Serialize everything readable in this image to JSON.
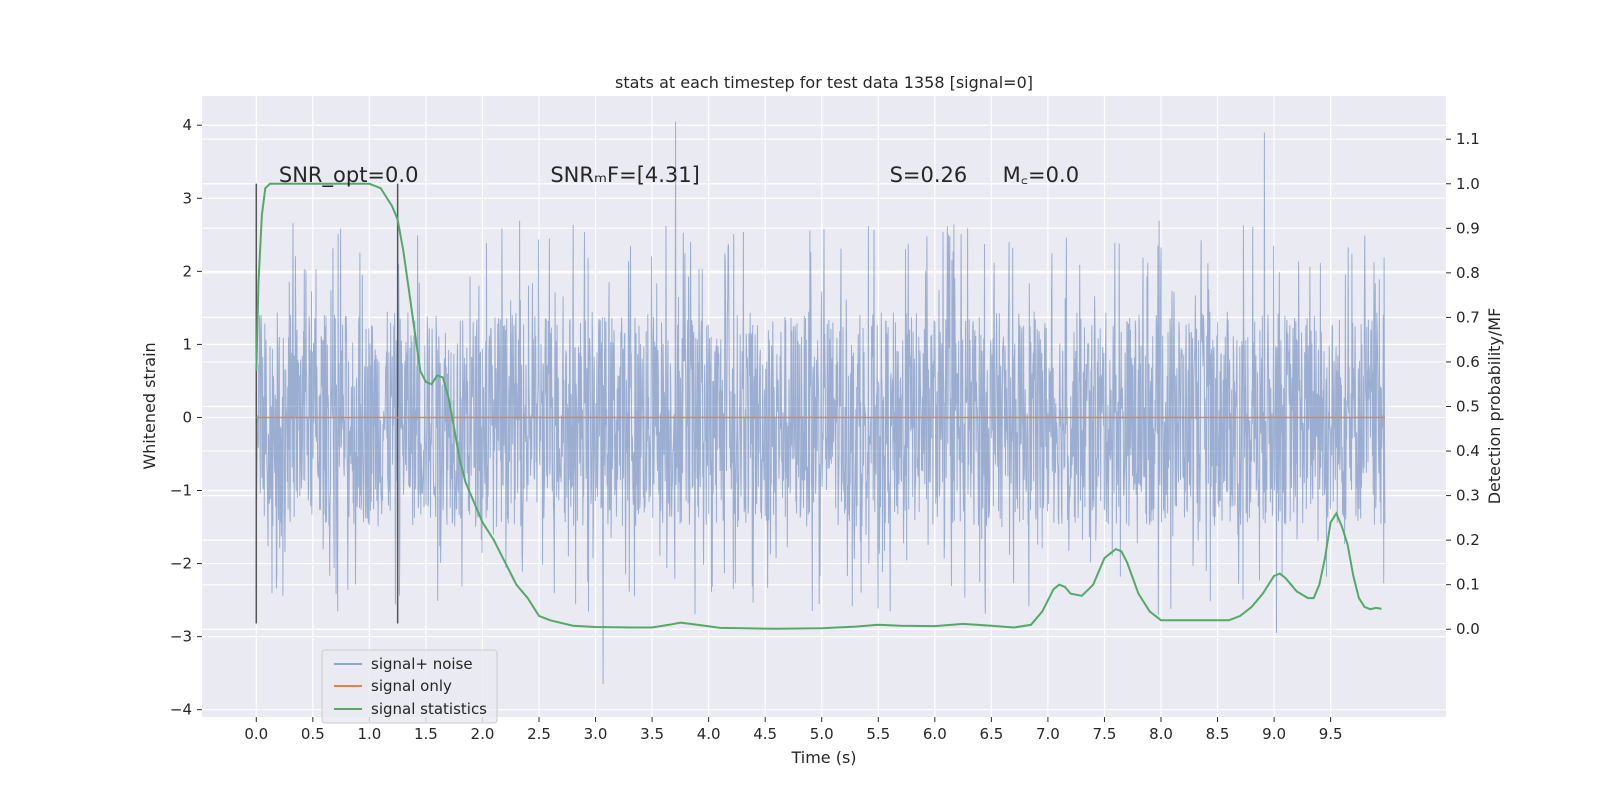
{
  "chart_data": {
    "type": "line",
    "title": "stats at each timestep for test data 1358 [signal=0]",
    "xlabel": "Time (s)",
    "ylabel": "Whitened strain",
    "y2label": "Detection probability/MF",
    "xlim": [
      -0.48,
      10.52
    ],
    "ylim": [
      -4.1,
      4.4
    ],
    "y2lim": [
      -0.197,
      1.197
    ],
    "xticks": [
      0.0,
      0.5,
      1.0,
      1.5,
      2.0,
      2.5,
      3.0,
      3.5,
      4.0,
      4.5,
      5.0,
      5.5,
      6.0,
      6.5,
      7.0,
      7.5,
      8.0,
      8.5,
      9.0,
      9.5
    ],
    "xtick_labels": [
      "0.0",
      "0.5",
      "1.0",
      "1.5",
      "2.0",
      "2.5",
      "3.0",
      "3.5",
      "4.0",
      "4.5",
      "5.0",
      "5.5",
      "6.0",
      "6.5",
      "7.0",
      "7.5",
      "8.0",
      "8.5",
      "9.0",
      "9.5"
    ],
    "yticks": [
      -4,
      -3,
      -2,
      -1,
      0,
      1,
      2,
      3,
      4
    ],
    "ytick_labels": [
      "−4",
      "−3",
      "−2",
      "−1",
      "0",
      "1",
      "2",
      "3",
      "4"
    ],
    "y2ticks": [
      0.0,
      0.1,
      0.2,
      0.3,
      0.4,
      0.5,
      0.6,
      0.7,
      0.8,
      0.9,
      1.0,
      1.1
    ],
    "y2tick_labels": [
      "0.0",
      "0.1",
      "0.2",
      "0.3",
      "0.4",
      "0.5",
      "0.6",
      "0.7",
      "0.8",
      "0.9",
      "1.0",
      "1.1"
    ],
    "grid": true,
    "legend_position": "lower-left",
    "noise": {
      "name": "signal+ noise",
      "color": "#4c72b0",
      "x_range": [
        0.0,
        9.98
      ],
      "band": [
        -1.5,
        1.45
      ],
      "peak_positive": 4.05,
      "peak_negative": -3.65
    },
    "series": [
      {
        "name": "signal only",
        "color": "#dd8452",
        "x": [
          0.0,
          9.98
        ],
        "y": [
          0.0,
          0.0
        ],
        "axis": "left"
      },
      {
        "name": "signal statistics",
        "color": "#55a868",
        "axis": "right",
        "x": [
          0.0,
          0.02,
          0.05,
          0.08,
          0.12,
          0.15,
          0.2,
          0.3,
          0.5,
          0.7,
          0.9,
          1.0,
          1.1,
          1.15,
          1.2,
          1.25,
          1.3,
          1.35,
          1.4,
          1.45,
          1.5,
          1.55,
          1.6,
          1.65,
          1.7,
          1.75,
          1.8,
          1.85,
          1.9,
          2.0,
          2.1,
          2.2,
          2.3,
          2.4,
          2.5,
          2.6,
          2.8,
          3.0,
          3.3,
          3.5,
          3.65,
          3.75,
          3.9,
          4.1,
          4.3,
          4.6,
          5.0,
          5.3,
          5.5,
          5.7,
          6.0,
          6.25,
          6.5,
          6.7,
          6.85,
          6.95,
          7.05,
          7.1,
          7.15,
          7.2,
          7.3,
          7.4,
          7.5,
          7.6,
          7.65,
          7.7,
          7.8,
          7.9,
          8.0,
          8.1,
          8.2,
          8.4,
          8.6,
          8.7,
          8.8,
          8.9,
          9.0,
          9.05,
          9.1,
          9.15,
          9.2,
          9.3,
          9.35,
          9.4,
          9.45,
          9.5,
          9.55,
          9.6,
          9.65,
          9.7,
          9.75,
          9.8,
          9.85,
          9.9,
          9.95
        ],
        "y": [
          0.58,
          0.78,
          0.93,
          0.99,
          1.0,
          1.0,
          1.0,
          1.0,
          1.0,
          1.0,
          1.0,
          1.0,
          0.99,
          0.97,
          0.95,
          0.92,
          0.85,
          0.76,
          0.67,
          0.58,
          0.555,
          0.55,
          0.57,
          0.565,
          0.52,
          0.45,
          0.38,
          0.33,
          0.3,
          0.24,
          0.2,
          0.15,
          0.1,
          0.07,
          0.03,
          0.02,
          0.008,
          0.005,
          0.004,
          0.004,
          0.01,
          0.015,
          0.01,
          0.003,
          0.002,
          0.001,
          0.002,
          0.006,
          0.01,
          0.008,
          0.007,
          0.012,
          0.008,
          0.004,
          0.01,
          0.04,
          0.09,
          0.1,
          0.095,
          0.08,
          0.075,
          0.1,
          0.16,
          0.18,
          0.175,
          0.15,
          0.08,
          0.04,
          0.02,
          0.02,
          0.02,
          0.02,
          0.02,
          0.03,
          0.05,
          0.08,
          0.12,
          0.125,
          0.115,
          0.1,
          0.085,
          0.07,
          0.07,
          0.1,
          0.16,
          0.24,
          0.26,
          0.23,
          0.19,
          0.12,
          0.07,
          0.05,
          0.045,
          0.048,
          0.046
        ]
      }
    ],
    "vertical_lines": [
      0.0,
      1.25
    ],
    "annotations": [
      {
        "x": 0.2,
        "label": "SNR_opt=0.0"
      },
      {
        "x": 2.6,
        "label": "SNRₘF=[4.31]"
      },
      {
        "x": 5.6,
        "label": "S=0.26"
      },
      {
        "x": 6.6,
        "label": "M꜀=0.0"
      }
    ]
  }
}
